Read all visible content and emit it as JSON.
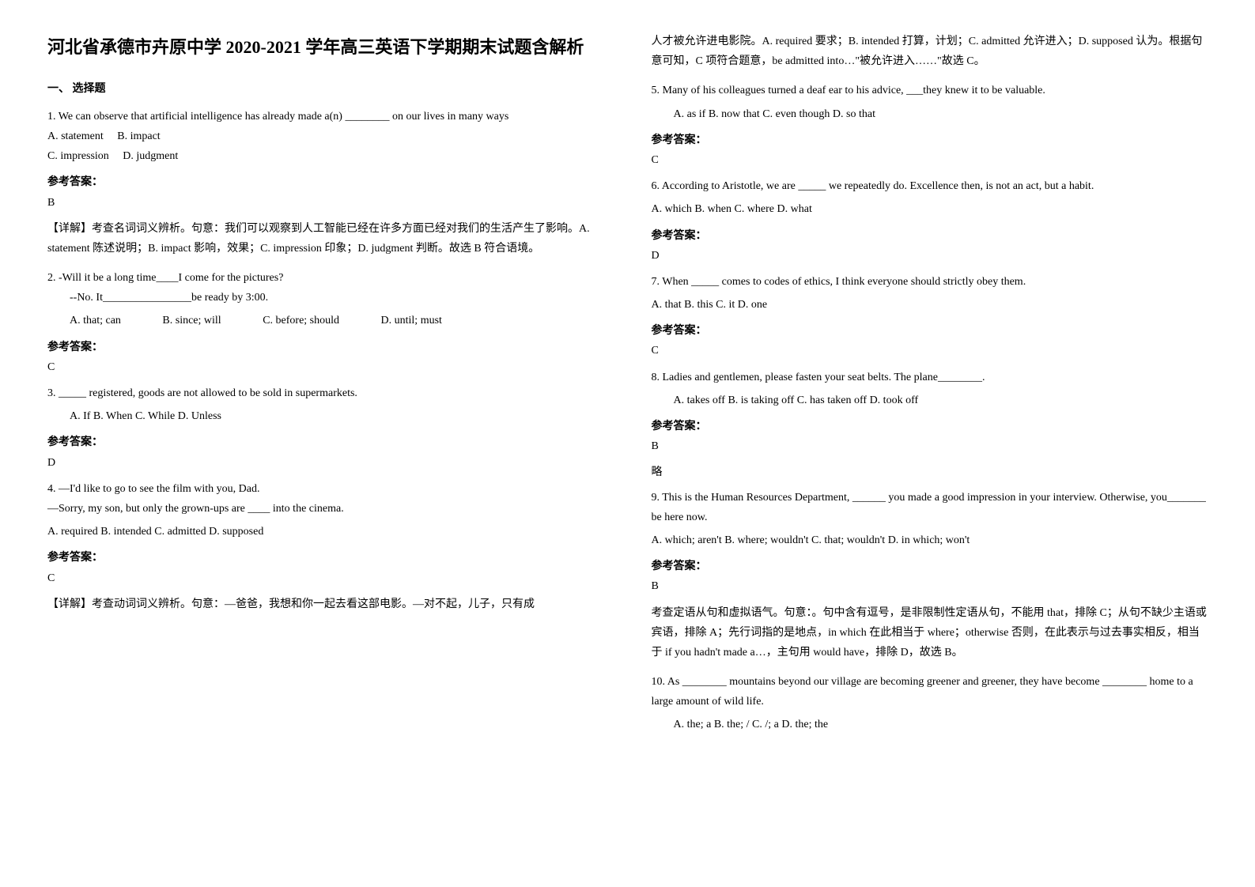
{
  "title": "河北省承德市卉原中学 2020-2021 学年高三英语下学期期末试题含解析",
  "section1_heading": "一、 选择题",
  "q1": {
    "text": "1. We can observe that artificial intelligence has already made a(n) ________ on our lives in many ways",
    "optA": "A. statement",
    "optB": "B. impact",
    "optC": "C. impression",
    "optD": "D. judgment",
    "answer_label": "参考答案：",
    "answer": "B",
    "explanation": "【详解】考查名词词义辨析。句意：我们可以观察到人工智能已经在许多方面已经对我们的生活产生了影响。A. statement 陈述说明；B. impact 影响，效果；C. impression 印象；D. judgment 判断。故选 B 符合语境。"
  },
  "q2": {
    "text": "2. -Will it be a long time____I come for the pictures?",
    "line2": "--No. It________________be ready by 3:00.",
    "optA": "A. that; can",
    "optB": "B. since; will",
    "optC": "C. before; should",
    "optD": "D. until; must",
    "answer_label": "参考答案：",
    "answer": "C"
  },
  "q3": {
    "text": "3. _____ registered, goods are not allowed to be sold in supermarkets.",
    "options": "A. If       B. When       C. While       D. Unless",
    "answer_label": "参考答案：",
    "answer": "D"
  },
  "q4": {
    "text": "4. —I'd like to go to see the film with you, Dad.",
    "line2": "—Sorry, my son, but only the grown-ups are ____ into the cinema.",
    "options": "A. required      B. intended      C. admitted      D. supposed",
    "answer_label": "参考答案：",
    "answer": "C",
    "explanation": "【详解】考查动词词义辨析。句意：—爸爸，我想和你一起去看这部电影。—对不起，儿子，只有成人才被允许进电影院。A. required 要求；B. intended 打算，计划；C. admitted 允许进入；D. supposed 认为。根据句意可知，C 项符合题意，be admitted into…\"被允许进入……\"故选 C。"
  },
  "q5": {
    "text": "5. Many of his colleagues turned a deaf ear to his advice, ___they knew it to be valuable.",
    "options": "A. as if       B. now that       C. even though       D. so that",
    "answer_label": "参考答案：",
    "answer": "C"
  },
  "q6": {
    "text": "6. According to Aristotle, we are _____ we repeatedly do. Excellence then, is not an act, but a habit.",
    "options": "A.  which             B.  when                  C.  where                  D.  what",
    "answer_label": "参考答案：",
    "answer": "D"
  },
  "q7": {
    "text": "7. When _____ comes to codes of ethics, I think everyone should strictly obey them.",
    "options": "A. that           B. this          C. it                D. one",
    "answer_label": "参考答案：",
    "answer": "C"
  },
  "q8": {
    "text": "8. Ladies and gentlemen, please fasten your seat belts. The plane________.",
    "options": "A. takes off     B. is taking off     C. has taken off    D. took off",
    "answer_label": "参考答案：",
    "answer": "B",
    "note": "略"
  },
  "q9": {
    "text": "9. This is the Human Resources Department, ______ you made a good impression in your interview. Otherwise, you_______ be here now.",
    "options": "A. which; aren't    B. where; wouldn't    C. that; wouldn't    D. in which; won't",
    "answer_label": "参考答案：",
    "answer": "B",
    "explanation": "考查定语从句和虚拟语气。句意：。句中含有逗号，是非限制性定语从句，不能用 that，排除 C；从句不缺少主语或宾语，排除 A；先行词指的是地点，in which 在此相当于 where；otherwise 否则，在此表示与过去事实相反，相当于 if you hadn't made a…，主句用 would have，排除 D，故选 B。"
  },
  "q10": {
    "text": "10. As ________ mountains beyond our village are becoming greener and greener, they have become ________ home to a large amount of wild life.",
    "options": "A. the; a              B. the; /                C. /; a                    D. the; the"
  }
}
